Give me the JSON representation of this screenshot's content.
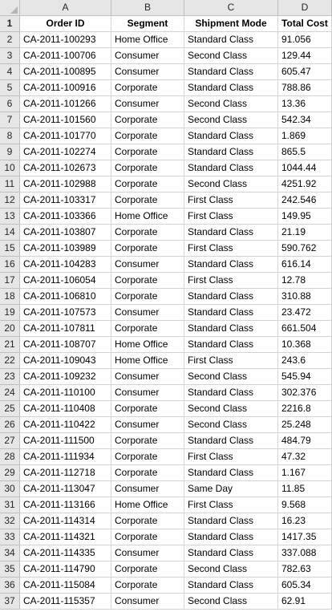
{
  "sheet": {
    "columns": [
      "A",
      "B",
      "C",
      "D"
    ],
    "headers": [
      "Order ID",
      "Segment",
      "Shipment Mode",
      "Total Cost"
    ],
    "header_row_number": "1",
    "rows": [
      {
        "n": "2",
        "cells": [
          "CA-2011-100293",
          "Home Office",
          "Standard Class",
          "91.056"
        ]
      },
      {
        "n": "3",
        "cells": [
          "CA-2011-100706",
          "Consumer",
          "Second Class",
          "129.44"
        ]
      },
      {
        "n": "4",
        "cells": [
          "CA-2011-100895",
          "Consumer",
          "Standard Class",
          "605.47"
        ]
      },
      {
        "n": "5",
        "cells": [
          "CA-2011-100916",
          "Corporate",
          "Standard Class",
          "788.86"
        ]
      },
      {
        "n": "6",
        "cells": [
          "CA-2011-101266",
          "Consumer",
          "Second Class",
          "13.36"
        ]
      },
      {
        "n": "7",
        "cells": [
          "CA-2011-101560",
          "Corporate",
          "Second Class",
          "542.34"
        ]
      },
      {
        "n": "8",
        "cells": [
          "CA-2011-101770",
          "Corporate",
          "Standard Class",
          "1.869"
        ]
      },
      {
        "n": "9",
        "cells": [
          "CA-2011-102274",
          "Corporate",
          "Standard Class",
          "865.5"
        ]
      },
      {
        "n": "10",
        "cells": [
          "CA-2011-102673",
          "Corporate",
          "Standard Class",
          "1044.44"
        ]
      },
      {
        "n": "11",
        "cells": [
          "CA-2011-102988",
          "Corporate",
          "Second Class",
          "4251.92"
        ]
      },
      {
        "n": "12",
        "cells": [
          "CA-2011-103317",
          "Corporate",
          "First Class",
          "242.546"
        ]
      },
      {
        "n": "13",
        "cells": [
          "CA-2011-103366",
          "Home Office",
          "First Class",
          "149.95"
        ]
      },
      {
        "n": "14",
        "cells": [
          "CA-2011-103807",
          "Corporate",
          "Standard Class",
          "21.19"
        ]
      },
      {
        "n": "15",
        "cells": [
          "CA-2011-103989",
          "Corporate",
          "First Class",
          "590.762"
        ]
      },
      {
        "n": "16",
        "cells": [
          "CA-2011-104283",
          "Consumer",
          "Standard Class",
          "616.14"
        ]
      },
      {
        "n": "17",
        "cells": [
          "CA-2011-106054",
          "Corporate",
          "First Class",
          "12.78"
        ]
      },
      {
        "n": "18",
        "cells": [
          "CA-2011-106810",
          "Corporate",
          "Standard Class",
          "310.88"
        ]
      },
      {
        "n": "19",
        "cells": [
          "CA-2011-107573",
          "Consumer",
          "Standard Class",
          "23.472"
        ]
      },
      {
        "n": "20",
        "cells": [
          "CA-2011-107811",
          "Corporate",
          "Standard Class",
          "661.504"
        ]
      },
      {
        "n": "21",
        "cells": [
          "CA-2011-108707",
          "Home Office",
          "Standard Class",
          "10.368"
        ]
      },
      {
        "n": "22",
        "cells": [
          "CA-2011-109043",
          "Home Office",
          "First Class",
          "243.6"
        ]
      },
      {
        "n": "23",
        "cells": [
          "CA-2011-109232",
          "Consumer",
          "Second Class",
          "545.94"
        ]
      },
      {
        "n": "24",
        "cells": [
          "CA-2011-110100",
          "Consumer",
          "Standard Class",
          "302.376"
        ]
      },
      {
        "n": "25",
        "cells": [
          "CA-2011-110408",
          "Corporate",
          "Second Class",
          "2216.8"
        ]
      },
      {
        "n": "26",
        "cells": [
          "CA-2011-110422",
          "Consumer",
          "Second Class",
          "25.248"
        ]
      },
      {
        "n": "27",
        "cells": [
          "CA-2011-111500",
          "Corporate",
          "Standard Class",
          "484.79"
        ]
      },
      {
        "n": "28",
        "cells": [
          "CA-2011-111934",
          "Corporate",
          "First Class",
          "47.32"
        ]
      },
      {
        "n": "29",
        "cells": [
          "CA-2011-112718",
          "Corporate",
          "Standard Class",
          "1.167"
        ]
      },
      {
        "n": "30",
        "cells": [
          "CA-2011-113047",
          "Consumer",
          "Same Day",
          "11.85"
        ]
      },
      {
        "n": "31",
        "cells": [
          "CA-2011-113166",
          "Home Office",
          "First Class",
          "9.568"
        ]
      },
      {
        "n": "32",
        "cells": [
          "CA-2011-114314",
          "Corporate",
          "Standard Class",
          "16.23"
        ]
      },
      {
        "n": "33",
        "cells": [
          "CA-2011-114321",
          "Corporate",
          "Standard Class",
          "1417.35"
        ]
      },
      {
        "n": "34",
        "cells": [
          "CA-2011-114335",
          "Consumer",
          "Standard Class",
          "337.088"
        ]
      },
      {
        "n": "35",
        "cells": [
          "CA-2011-114790",
          "Corporate",
          "Second Class",
          "782.63"
        ]
      },
      {
        "n": "36",
        "cells": [
          "CA-2011-115084",
          "Corporate",
          "Standard Class",
          "605.34"
        ]
      },
      {
        "n": "37",
        "cells": [
          "CA-2011-115357",
          "Consumer",
          "Second Class",
          "62.91"
        ]
      }
    ]
  },
  "colors": {
    "header_bg": "#e6e6e6",
    "gridline": "#d4d4d4",
    "header_border": "#bfbfbf"
  }
}
